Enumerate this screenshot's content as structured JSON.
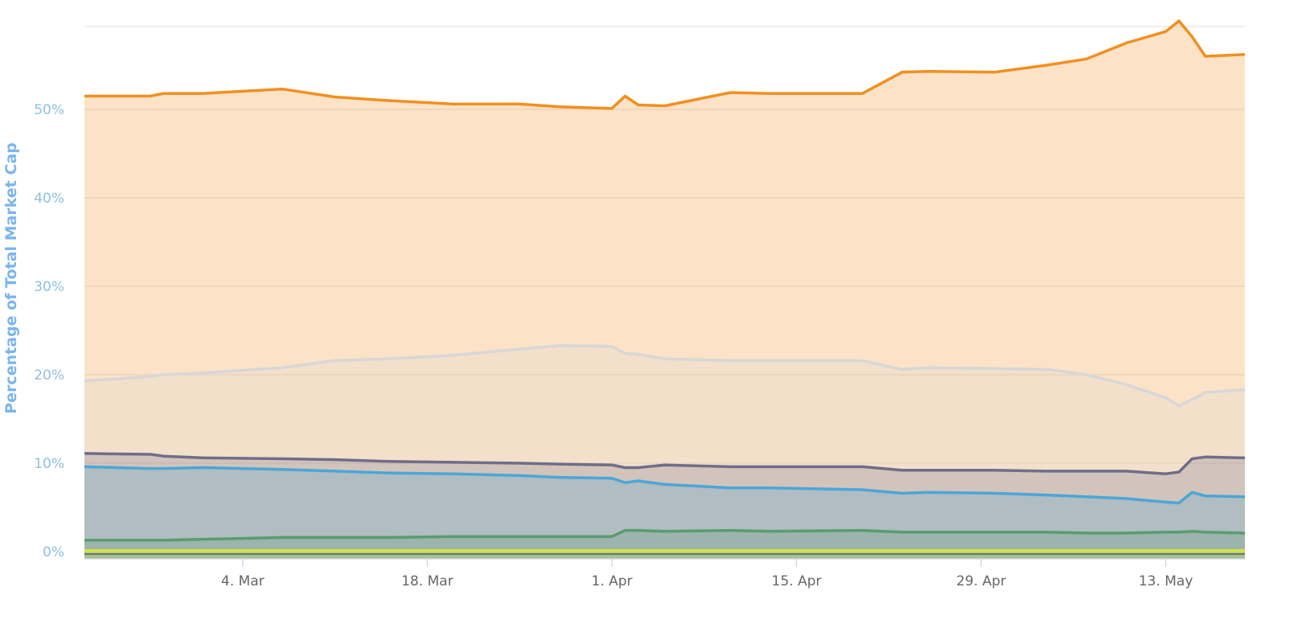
{
  "chart_data": {
    "type": "area",
    "stacking": "percent-of-total (stacked)",
    "title": "",
    "xlabel": "",
    "ylabel": "Percentage of Total Market Cap",
    "x_range": [
      "2019-02-20",
      "2019-05-19"
    ],
    "ylim": [
      0,
      60
    ],
    "y_ticks": [
      "0%",
      "10%",
      "20%",
      "30%",
      "40%",
      "50%"
    ],
    "y_tick_values": [
      0,
      10,
      20,
      30,
      40,
      50
    ],
    "x_ticks": [
      "4. Mar",
      "18. Mar",
      "1. Apr",
      "15. Apr",
      "29. Apr",
      "13. May"
    ],
    "x_tick_dates": [
      "2019-03-04",
      "2019-03-18",
      "2019-04-01",
      "2019-04-15",
      "2019-04-29",
      "2019-05-13"
    ],
    "grid": true,
    "legend": "none",
    "x": [
      "2019-02-20",
      "2019-02-25",
      "2019-02-26",
      "2019-03-01",
      "2019-03-07",
      "2019-03-11",
      "2019-03-15",
      "2019-03-20",
      "2019-03-25",
      "2019-03-28",
      "2019-04-01",
      "2019-04-02",
      "2019-04-03",
      "2019-04-05",
      "2019-04-10",
      "2019-04-13",
      "2019-04-20",
      "2019-04-23",
      "2019-04-25",
      "2019-04-30",
      "2019-05-04",
      "2019-05-07",
      "2019-05-10",
      "2019-05-13",
      "2019-05-14",
      "2019-05-15",
      "2019-05-16",
      "2019-05-19"
    ],
    "series": [
      {
        "color": "#f28f20",
        "values": [
          51.5,
          51.5,
          51.8,
          51.8,
          52.3,
          51.4,
          51.0,
          50.6,
          50.6,
          50.3,
          50.1,
          51.5,
          50.5,
          50.4,
          51.9,
          51.8,
          51.8,
          54.2,
          54.3,
          54.2,
          55.0,
          55.7,
          57.5,
          58.8,
          60.0,
          58.2,
          56.0,
          56.2
        ]
      },
      {
        "color": "#d7d7d7",
        "values": [
          19.3,
          19.8,
          20.0,
          20.2,
          20.8,
          21.6,
          21.8,
          22.2,
          22.9,
          23.3,
          23.2,
          22.4,
          22.3,
          21.8,
          21.6,
          21.6,
          21.6,
          20.6,
          20.8,
          20.7,
          20.6,
          20.0,
          18.9,
          17.4,
          16.5,
          17.2,
          18.0,
          18.3
        ]
      },
      {
        "color": "#6e6e8a",
        "values": [
          11.1,
          11.0,
          10.8,
          10.6,
          10.5,
          10.4,
          10.2,
          10.1,
          10.0,
          9.9,
          9.8,
          9.5,
          9.5,
          9.8,
          9.6,
          9.6,
          9.6,
          9.2,
          9.2,
          9.2,
          9.1,
          9.1,
          9.1,
          8.8,
          9.0,
          10.5,
          10.7,
          10.6
        ]
      },
      {
        "color": "#4ba6d8",
        "values": [
          9.6,
          9.4,
          9.4,
          9.5,
          9.3,
          9.1,
          8.9,
          8.8,
          8.6,
          8.4,
          8.3,
          7.8,
          8.0,
          7.6,
          7.2,
          7.2,
          7.0,
          6.6,
          6.7,
          6.6,
          6.4,
          6.2,
          6.0,
          5.6,
          5.5,
          6.7,
          6.3,
          6.2
        ]
      },
      {
        "color": "#5a9c6e",
        "values": [
          1.3,
          1.3,
          1.3,
          1.4,
          1.6,
          1.6,
          1.6,
          1.7,
          1.7,
          1.7,
          1.7,
          2.4,
          2.4,
          2.3,
          2.4,
          2.3,
          2.4,
          2.2,
          2.2,
          2.2,
          2.2,
          2.1,
          2.1,
          2.2,
          2.2,
          2.3,
          2.2,
          2.1
        ]
      },
      {
        "color": "#d4e04a",
        "values": [
          0.1,
          0.1,
          0.1,
          0.1,
          0.1,
          0.1,
          0.1,
          0.1,
          0.1,
          0.1,
          0.1,
          0.1,
          0.1,
          0.1,
          0.1,
          0.1,
          0.1,
          0.1,
          0.1,
          0.1,
          0.1,
          0.1,
          0.1,
          0.1,
          0.1,
          0.1,
          0.1,
          0.1
        ]
      }
    ]
  }
}
